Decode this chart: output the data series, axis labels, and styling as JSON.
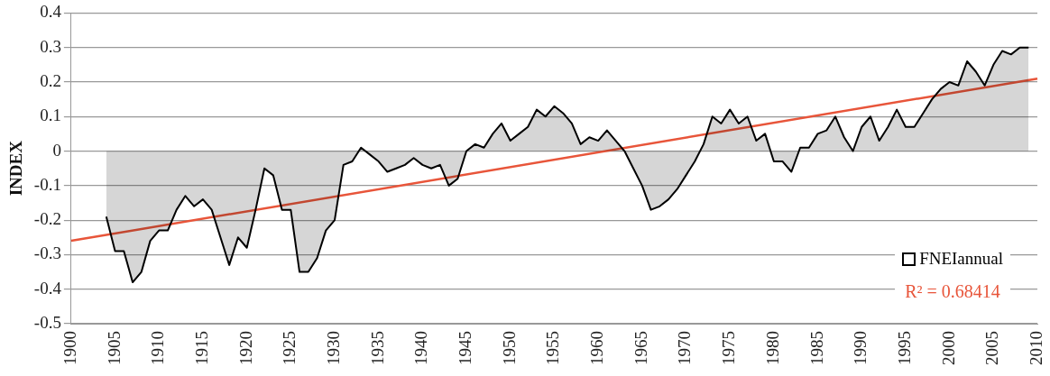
{
  "chart_data": {
    "type": "area",
    "ylabel": "INDEX",
    "x": [
      1904,
      1905,
      1906,
      1907,
      1908,
      1909,
      1910,
      1911,
      1912,
      1913,
      1914,
      1915,
      1916,
      1917,
      1918,
      1919,
      1920,
      1921,
      1922,
      1923,
      1924,
      1925,
      1926,
      1927,
      1928,
      1929,
      1930,
      1931,
      1932,
      1933,
      1934,
      1935,
      1936,
      1937,
      1938,
      1939,
      1940,
      1941,
      1942,
      1943,
      1944,
      1945,
      1946,
      1947,
      1948,
      1949,
      1950,
      1951,
      1952,
      1953,
      1954,
      1955,
      1956,
      1957,
      1958,
      1959,
      1960,
      1961,
      1962,
      1963,
      1964,
      1965,
      1966,
      1967,
      1968,
      1969,
      1970,
      1971,
      1972,
      1973,
      1974,
      1975,
      1976,
      1977,
      1978,
      1979,
      1980,
      1981,
      1982,
      1983,
      1984,
      1985,
      1986,
      1987,
      1988,
      1989,
      1990,
      1991,
      1992,
      1993,
      1994,
      1995,
      1996,
      1997,
      1998,
      1999,
      2000,
      2001,
      2002,
      2003,
      2004,
      2005,
      2006,
      2007,
      2008,
      2009
    ],
    "series": [
      {
        "name": "FNEIannual",
        "color": "#000000",
        "values": [
          -0.19,
          -0.29,
          -0.29,
          -0.38,
          -0.35,
          -0.26,
          -0.23,
          -0.23,
          -0.17,
          -0.13,
          -0.16,
          -0.14,
          -0.17,
          -0.25,
          -0.33,
          -0.25,
          -0.28,
          -0.17,
          -0.05,
          -0.07,
          -0.17,
          -0.17,
          -0.35,
          -0.35,
          -0.31,
          -0.23,
          -0.2,
          -0.04,
          -0.03,
          0.01,
          -0.01,
          -0.03,
          -0.06,
          -0.05,
          -0.04,
          -0.02,
          -0.04,
          -0.05,
          -0.04,
          -0.1,
          -0.08,
          0,
          0.02,
          0.01,
          0.05,
          0.08,
          0.03,
          0.05,
          0.07,
          0.12,
          0.1,
          0.13,
          0.11,
          0.08,
          0.02,
          0.04,
          0.03,
          0.06,
          0.03,
          0,
          -0.05,
          -0.1,
          -0.17,
          -0.16,
          -0.14,
          -0.11,
          -0.07,
          -0.03,
          0.02,
          0.1,
          0.08,
          0.12,
          0.08,
          0.1,
          0.03,
          0.05,
          -0.03,
          -0.03,
          -0.06,
          0.01,
          0.01,
          0.05,
          0.06,
          0.1,
          0.04,
          0,
          0.07,
          0.1,
          0.03,
          0.07,
          0.12,
          0.07,
          0.07,
          0.11,
          0.15,
          0.18,
          0.2,
          0.19,
          0.26,
          0.23,
          0.19,
          0.25,
          0.29,
          0.28,
          0.3,
          0.3
        ]
      },
      {
        "type": "line",
        "color": "#e8553a",
        "x": [
          1900,
          2010
        ],
        "values": [
          -0.26,
          0.21
        ]
      }
    ],
    "xlim": [
      1900,
      2010
    ],
    "xticks": [
      1900,
      1905,
      1910,
      1915,
      1920,
      1925,
      1930,
      1935,
      1940,
      1945,
      1950,
      1955,
      1960,
      1965,
      1970,
      1975,
      1980,
      1985,
      1990,
      1995,
      2000,
      2005,
      2010
    ],
    "ylim": [
      -0.5,
      0.4
    ],
    "yticks": [
      -0.5,
      -0.4,
      -0.3,
      -0.2,
      -0.1,
      0,
      0.1,
      0.2,
      0.3,
      0.4
    ],
    "grid": "y",
    "legend": "bottom right",
    "annotations": [
      "R² = 0.68414"
    ]
  }
}
